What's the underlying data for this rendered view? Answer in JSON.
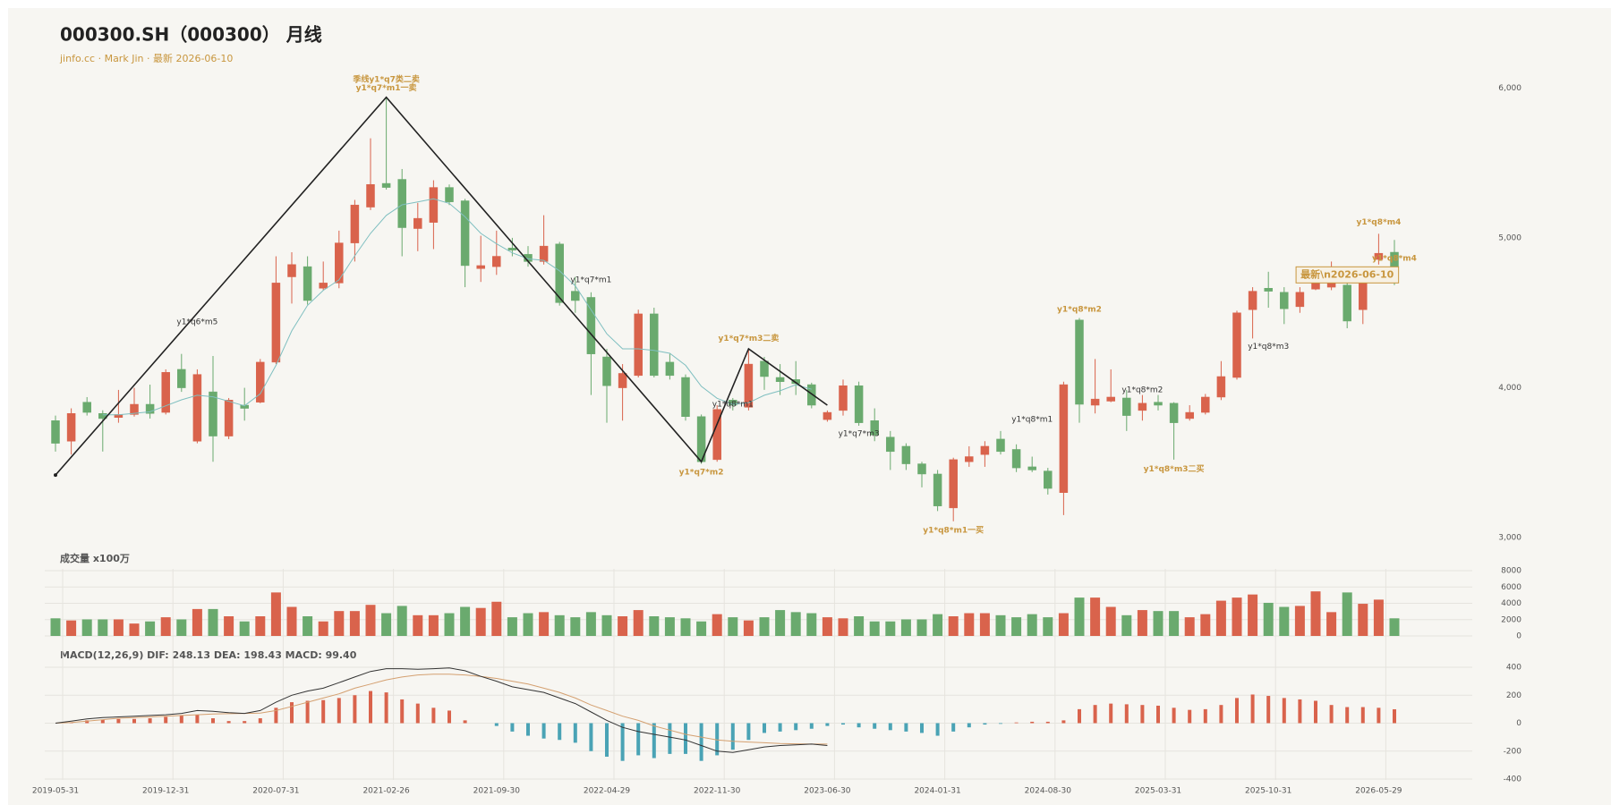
{
  "chart_data": {
    "type": "candlestick",
    "title": "000300.SH（000300） 月线",
    "subtitle": "jinfo.cc · Mark Jin · 最新 2026-06-10",
    "categories": [
      "2019-05-31",
      null,
      null,
      null,
      null,
      null,
      null,
      "2019-12-31",
      null,
      null,
      null,
      null,
      null,
      null,
      "2020-07-31",
      null,
      null,
      null,
      null,
      null,
      null,
      "2021-02-26",
      null,
      null,
      null,
      null,
      null,
      null,
      "2021-09-30",
      null,
      null,
      null,
      null,
      null,
      null,
      "2022-04-29",
      null,
      null,
      null,
      null,
      null,
      null,
      "2022-11-30",
      null,
      null,
      null,
      null,
      null,
      null,
      "2023-06-30",
      null,
      null,
      null,
      null,
      null,
      null,
      "2024-01-31",
      null,
      null,
      null,
      null,
      null,
      null,
      "2024-08-30",
      null,
      null,
      null,
      null,
      null,
      null,
      "2025-03-31",
      null,
      null,
      null,
      null,
      null,
      null,
      "2025-10-31",
      null,
      null,
      null,
      null,
      null,
      null,
      "2026-05-29",
      null
    ],
    "open": [
      3781,
      3644,
      3904,
      3829,
      3802,
      3822,
      3890,
      3836,
      4123,
      3644,
      3973,
      3678,
      3884,
      3904,
      4171,
      4740,
      4808,
      4664,
      4699,
      4966,
      5205,
      5363,
      5390,
      5062,
      5103,
      5336,
      5247,
      4795,
      4808,
      4932,
      4890,
      4842,
      4959,
      4644,
      4603,
      4206,
      4000,
      4082,
      4493,
      4171,
      4069,
      3808,
      3521,
      3918,
      3870,
      4178,
      4069,
      4055,
      4021,
      3788,
      3849,
      4014,
      3781,
      3671,
      3610,
      3493,
      3425,
      3199,
      3507,
      3555,
      3658,
      3589,
      3473,
      3445,
      3301,
      4452,
      3884,
      3911,
      3932,
      3849,
      3904,
      3897,
      3795,
      3836,
      3938,
      4069,
      4521,
      4664,
      4637,
      4541,
      4658,
      4671,
      4685,
      4521,
      4856,
      4904
    ],
    "high": [
      3815,
      3863,
      3938,
      3850,
      3986,
      4000,
      4021,
      4123,
      4226,
      4123,
      4212,
      3932,
      4000,
      4192,
      4877,
      4904,
      4877,
      4842,
      5048,
      5253,
      5664,
      5938,
      5459,
      5233,
      5384,
      5356,
      5260,
      5014,
      5048,
      5000,
      4945,
      5151,
      4973,
      4740,
      4637,
      4260,
      4158,
      4521,
      4534,
      4226,
      4089,
      3822,
      3884,
      3932,
      4260,
      4206,
      4158,
      4178,
      4034,
      3849,
      4055,
      4041,
      3863,
      3712,
      3630,
      3507,
      3452,
      3534,
      3610,
      3644,
      3712,
      3623,
      3541,
      3466,
      4041,
      4466,
      4192,
      4123,
      3986,
      3952,
      3952,
      3904,
      3884,
      3959,
      4178,
      4514,
      4671,
      4774,
      4671,
      4671,
      4740,
      4842,
      4740,
      4808,
      5027,
      4986
    ],
    "low": [
      3575,
      3555,
      3815,
      3575,
      3767,
      3808,
      3795,
      3822,
      3973,
      3630,
      3507,
      3658,
      3781,
      3897,
      4158,
      4562,
      4555,
      4651,
      4664,
      4842,
      5185,
      5322,
      4877,
      4911,
      4925,
      5219,
      4671,
      4706,
      4753,
      4877,
      4808,
      4822,
      4548,
      4500,
      3952,
      3767,
      3781,
      4069,
      4069,
      4055,
      3781,
      3493,
      3507,
      3849,
      3849,
      3986,
      3952,
      3952,
      3863,
      3774,
      3815,
      3747,
      3644,
      3452,
      3452,
      3336,
      3178,
      3110,
      3473,
      3473,
      3555,
      3438,
      3438,
      3288,
      3151,
      3767,
      3829,
      3904,
      3712,
      3781,
      3849,
      3521,
      3781,
      3822,
      3918,
      4055,
      4329,
      4534,
      4425,
      4500,
      4651,
      4651,
      4397,
      4425,
      4822,
      4685
    ],
    "close": [
      3630,
      3829,
      3836,
      3795,
      3822,
      3890,
      3829,
      4103,
      4000,
      4089,
      3678,
      3918,
      3863,
      4171,
      4699,
      4822,
      4582,
      4699,
      4966,
      5219,
      5356,
      5336,
      5068,
      5130,
      5336,
      5240,
      4815,
      4815,
      4877,
      4918,
      4842,
      4945,
      4568,
      4582,
      4226,
      4014,
      4096,
      4493,
      4082,
      4082,
      3808,
      3507,
      3856,
      3884,
      4158,
      4075,
      4041,
      4028,
      3884,
      3836,
      4014,
      3767,
      3685,
      3575,
      3493,
      3425,
      3212,
      3521,
      3541,
      3610,
      3575,
      3466,
      3452,
      3329,
      4021,
      3890,
      3925,
      3938,
      3815,
      3897,
      3884,
      3767,
      3836,
      3938,
      4075,
      4500,
      4644,
      4644,
      4527,
      4637,
      4699,
      4712,
      4445,
      4753,
      4897,
      4740
    ],
    "up_color": "#d9634c",
    "down_color": "#6aaa6e",
    "ylim": [
      2950,
      6100
    ],
    "yticks": [
      {
        "value": 3000,
        "label": "3,000"
      },
      {
        "value": 4000,
        "label": "4,000"
      },
      {
        "value": 5000,
        "label": "5,000"
      },
      {
        "value": 6000,
        "label": "6,000"
      }
    ],
    "ma": {
      "color": "#7fbfc0",
      "values": [
        null,
        null,
        null,
        3820,
        3820,
        3830,
        3840,
        3880,
        3920,
        3950,
        3940,
        3910,
        3880,
        3960,
        4150,
        4380,
        4550,
        4650,
        4720,
        4880,
        5030,
        5150,
        5220,
        5240,
        5260,
        5230,
        5140,
        5030,
        4960,
        4900,
        4860,
        4850,
        4780,
        4680,
        4520,
        4360,
        4260,
        4260,
        4250,
        4230,
        4150,
        4010,
        3930,
        3890,
        3900,
        3950,
        3980,
        4020,
        3990,
        null,
        null,
        null,
        null,
        null,
        null,
        null,
        null,
        null,
        null,
        null,
        null,
        null,
        null,
        null,
        null,
        null,
        null,
        null,
        null,
        null,
        null,
        null,
        null,
        null,
        null,
        null,
        null,
        null,
        null,
        null,
        null,
        null,
        null,
        null,
        null,
        null
      ]
    },
    "zigzag": {
      "color": "#222222",
      "x": [
        0,
        21,
        41,
        44,
        49
      ],
      "values": [
        3418,
        5938,
        3507,
        4260,
        3884
      ]
    },
    "annotations": [
      {
        "text": "季线y1*q7类二卖",
        "x": 21,
        "y": 6055,
        "color": "#c8963e"
      },
      {
        "text": "y1*q7*m1一卖",
        "x": 21,
        "y": 6000,
        "color": "#c8963e"
      },
      {
        "text": "y1*q6*m5",
        "x": 9,
        "y": 4438,
        "color": "#333333"
      },
      {
        "text": "y1*q7*m1",
        "x": 34,
        "y": 4719,
        "color": "#333333"
      },
      {
        "text": "y1*q7*m3二卖",
        "x": 44,
        "y": 4329,
        "color": "#c8963e"
      },
      {
        "text": "y1*q7*m2",
        "x": 41,
        "y": 3438,
        "color": "#c8963e"
      },
      {
        "text": "y1*q8*m1",
        "x": 43,
        "y": 3890,
        "color": "#333333"
      },
      {
        "text": "y1*q7*m3",
        "x": 51,
        "y": 3692,
        "color": "#333333"
      },
      {
        "text": "y1*q8*m1一买",
        "x": 57,
        "y": 3048,
        "color": "#c8963e"
      },
      {
        "text": "y1*q8*m1",
        "x": 62,
        "y": 3788,
        "color": "#333333"
      },
      {
        "text": "y1*q8*m2",
        "x": 65,
        "y": 4521,
        "color": "#c8963e"
      },
      {
        "text": "y1*q8*m2",
        "x": 69,
        "y": 3986,
        "color": "#333333"
      },
      {
        "text": "y1*q8*m3二买",
        "x": 71,
        "y": 3459,
        "color": "#c8963e"
      },
      {
        "text": "y1*q8*m3",
        "x": 77,
        "y": 4274,
        "color": "#333333"
      },
      {
        "text": "y1*q8*m4",
        "x": 84,
        "y": 5103,
        "color": "#c8963e"
      },
      {
        "text": "y1*q8*m4",
        "x": 85,
        "y": 4863,
        "color": "#c8963e"
      }
    ],
    "latest_label": {
      "text": "最新\\n2026-06-10",
      "x": 82,
      "y": 4753,
      "color": "#c8963e"
    },
    "volume": {
      "title": "成交量 x100万",
      "values": [
        2160,
        1900,
        2030,
        2030,
        2030,
        1520,
        1780,
        2290,
        2030,
        3300,
        3300,
        2410,
        1780,
        2410,
        5330,
        3560,
        2410,
        1780,
        3050,
        3050,
        3810,
        2790,
        3680,
        2540,
        2540,
        2790,
        3560,
        3430,
        4190,
        2290,
        2790,
        2920,
        2540,
        2290,
        2920,
        2540,
        2410,
        3170,
        2410,
        2290,
        2160,
        1780,
        2670,
        2290,
        1900,
        2290,
        3170,
        2920,
        2790,
        2290,
        2160,
        2410,
        1780,
        1780,
        2030,
        2030,
        2670,
        2410,
        2790,
        2790,
        2540,
        2290,
        2670,
        2290,
        2790,
        4700,
        4700,
        3560,
        2540,
        3170,
        3050,
        3050,
        2290,
        2670,
        4320,
        4700,
        5080,
        4060,
        3560,
        3680,
        5460,
        2920,
        5330,
        3940,
        4450,
        2160
      ],
      "ylim": [
        0,
        8000
      ],
      "yticks": [
        0,
        2000,
        4000,
        6000,
        8000
      ]
    },
    "macd": {
      "title": "MACD(12,26,9) DIF: 248.13 DEA: 198.43 MACD: 99.40",
      "dif": {
        "color": "#333333",
        "values": [
          0,
          15,
          30,
          40,
          45,
          50,
          55,
          60,
          70,
          90,
          85,
          75,
          70,
          90,
          150,
          200,
          230,
          250,
          290,
          330,
          370,
          390,
          390,
          385,
          390,
          395,
          375,
          335,
          300,
          260,
          240,
          220,
          180,
          140,
          80,
          20,
          -30,
          -60,
          -80,
          -100,
          -120,
          -160,
          -200,
          -210,
          -190,
          -170,
          -160,
          -155,
          -150,
          -160,
          null,
          null,
          null,
          null,
          null,
          null,
          null,
          null,
          null,
          null,
          null,
          null,
          null,
          null,
          null,
          null,
          null,
          null,
          null,
          null,
          null,
          null,
          null,
          null,
          null,
          null,
          null,
          null,
          null,
          null,
          null,
          null,
          null,
          null,
          null,
          null
        ]
      },
      "dea": {
        "color": "#d4a070",
        "values": [
          0,
          5,
          15,
          25,
          35,
          40,
          45,
          50,
          55,
          60,
          65,
          68,
          70,
          72,
          90,
          120,
          150,
          180,
          210,
          250,
          280,
          310,
          330,
          345,
          350,
          350,
          345,
          335,
          320,
          300,
          280,
          250,
          220,
          180,
          130,
          90,
          50,
          20,
          -20,
          -50,
          -80,
          -100,
          -120,
          -130,
          -135,
          -140,
          -145,
          -148,
          -150,
          -150,
          null,
          null,
          null,
          null,
          null,
          null,
          null,
          null,
          null,
          null,
          null,
          null,
          null,
          null,
          null,
          null,
          null,
          null,
          null,
          null,
          null,
          null,
          null,
          null,
          null,
          null,
          null,
          null,
          null,
          null,
          null,
          null,
          null,
          null,
          null,
          null
        ]
      },
      "hist": {
        "up_color": "#d9634c",
        "down_color": "#4aa3b5",
        "values": [
          0,
          5,
          20,
          25,
          30,
          30,
          35,
          45,
          55,
          60,
          35,
          15,
          15,
          35,
          110,
          150,
          160,
          165,
          180,
          200,
          230,
          220,
          170,
          140,
          110,
          90,
          20,
          0,
          -20,
          -60,
          -90,
          -110,
          -120,
          -140,
          -200,
          -240,
          -270,
          -230,
          -250,
          -220,
          -220,
          -270,
          -230,
          -190,
          -120,
          -70,
          -60,
          -50,
          -40,
          -20,
          -10,
          -30,
          -40,
          -50,
          -60,
          -70,
          -90,
          -60,
          -30,
          -10,
          -5,
          5,
          10,
          10,
          20,
          100,
          130,
          140,
          135,
          130,
          125,
          110,
          95,
          100,
          130,
          180,
          205,
          195,
          180,
          170,
          160,
          130,
          115,
          115,
          110,
          99.4
        ]
      },
      "ylim": [
        -400,
        400
      ],
      "yticks": [
        -400,
        -200,
        0,
        200,
        400
      ]
    }
  }
}
